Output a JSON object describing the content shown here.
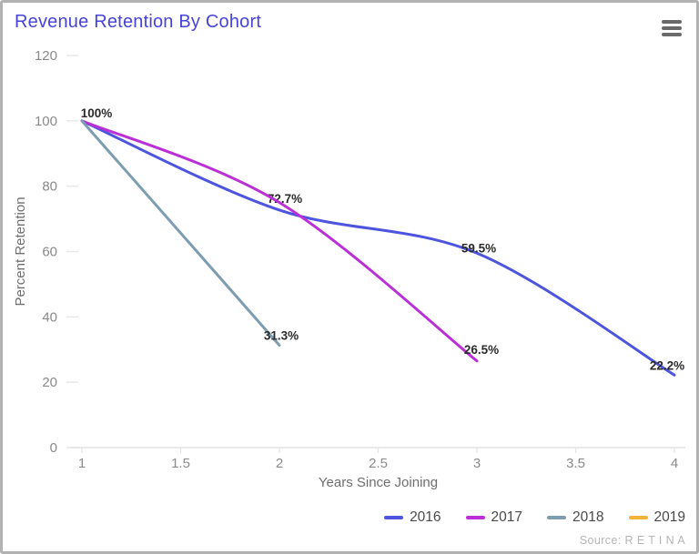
{
  "header": {
    "title": "Revenue Retention By Cohort",
    "menu_icon": "hamburger-menu-icon"
  },
  "colors": {
    "title": "#4643d8",
    "axis_text": "#8a8a8a",
    "axis_title": "#6f6f6f",
    "tick_line": "#e8e8e8",
    "axis_line": "#e2e2e2",
    "data_label": "#2b2b2b",
    "legend_text": "#4a4a4a",
    "source_text": "#b5b5b5",
    "menu_icon": "#6a6a6a",
    "series_2016": "#4d54dd",
    "series_2017": "#bb30d6",
    "series_2018": "#7d9db2",
    "series_2019": "#f2b438"
  },
  "chart_data": {
    "type": "line",
    "title": "Revenue Retention By Cohort",
    "xlabel": "Years Since Joining",
    "ylabel": "Percent Retention",
    "xlim": [
      1,
      4
    ],
    "ylim": [
      0,
      120
    ],
    "x_ticks": [
      1,
      1.5,
      2,
      2.5,
      3,
      3.5,
      4
    ],
    "y_ticks": [
      0,
      20,
      40,
      60,
      80,
      100,
      120
    ],
    "grid": false,
    "smooth": true,
    "legend_position": "bottom-right",
    "series": [
      {
        "name": "2016",
        "color": "#4d54dd",
        "x": [
          1,
          2,
          3,
          4
        ],
        "values": [
          100,
          72.7,
          59.5,
          22.2
        ],
        "labels": [
          {
            "x": 1,
            "text": "100%",
            "dx": 16,
            "dy": -14
          },
          {
            "x": 2,
            "text": "72.7%",
            "dx": 6,
            "dy": -18
          },
          {
            "x": 3,
            "text": "59.5%",
            "dx": 2,
            "dy": -11
          },
          {
            "x": 4,
            "text": "22.2%",
            "dx": -8,
            "dy": -16
          }
        ]
      },
      {
        "name": "2017",
        "color": "#bb30d6",
        "x": [
          1,
          2,
          3
        ],
        "values": [
          100,
          75,
          26.5
        ],
        "labels": [
          {
            "x": 3,
            "text": "26.5%",
            "dx": 5,
            "dy": -18
          }
        ]
      },
      {
        "name": "2018",
        "color": "#7d9db2",
        "x": [
          1,
          2
        ],
        "values": [
          100,
          31.3
        ],
        "labels": [
          {
            "x": 2,
            "text": "31.3%",
            "dx": 2,
            "dy": -16
          }
        ]
      },
      {
        "name": "2019",
        "color": "#f2b438",
        "x": [
          1
        ],
        "values": [
          100
        ],
        "labels": []
      }
    ],
    "source": "Source: R E T I N A"
  }
}
